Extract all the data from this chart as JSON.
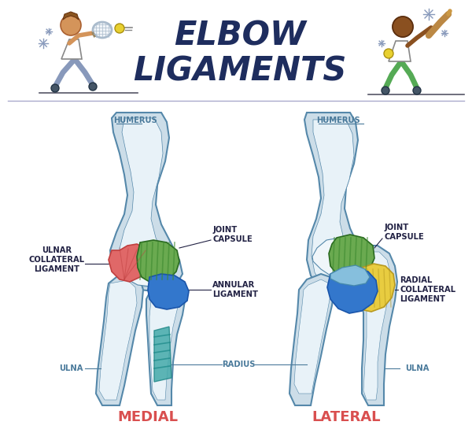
{
  "title_line1": "ELBOW",
  "title_line2": "LIGAMENTS",
  "title_color": "#1e2d5e",
  "title_fontsize": 30,
  "background_color": "#ffffff",
  "label_color": "#4a7a9b",
  "label_fontsize": 7.2,
  "medial_label": "MEDIAL",
  "lateral_label": "LATERAL",
  "footer_color": "#d94f4f",
  "footer_fontsize": 13,
  "colors": {
    "bone_fill": "#ccdde8",
    "bone_inner": "#e8f2f8",
    "bone_outline": "#5588aa",
    "bone_shadow": "#aac8dc",
    "green_lig": "#6aaa50",
    "green_stripe": "#3d8a30",
    "red_lig": "#e06868",
    "red_dark": "#c04040",
    "blue_lig": "#3377cc",
    "blue_dark": "#1a55aa",
    "teal_lig": "#44aaaa",
    "yellow_lig": "#e8cc40",
    "yellow_dark": "#b89a20",
    "light_blue": "#88c0d8",
    "white_area": "#f0f6fa"
  }
}
